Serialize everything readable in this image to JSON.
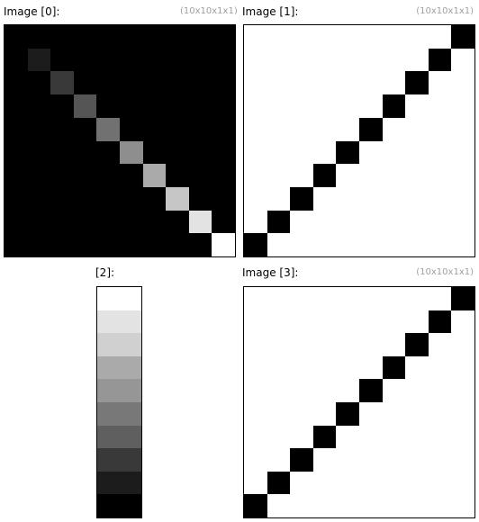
{
  "panels": [
    {
      "title": "Image [0]:",
      "dims": "(10x10x1x1)",
      "cells": [
        [
          0,
          0,
          0,
          0,
          0,
          0,
          0,
          0,
          0,
          0
        ],
        [
          0,
          28,
          0,
          0,
          0,
          0,
          0,
          0,
          0,
          0
        ],
        [
          0,
          0,
          57,
          0,
          0,
          0,
          0,
          0,
          0,
          0
        ],
        [
          0,
          0,
          0,
          85,
          0,
          0,
          0,
          0,
          0,
          0
        ],
        [
          0,
          0,
          0,
          0,
          113,
          0,
          0,
          0,
          0,
          0
        ],
        [
          0,
          0,
          0,
          0,
          0,
          142,
          0,
          0,
          0,
          0
        ],
        [
          0,
          0,
          0,
          0,
          0,
          0,
          170,
          0,
          0,
          0
        ],
        [
          0,
          0,
          0,
          0,
          0,
          0,
          0,
          198,
          0,
          0
        ],
        [
          0,
          0,
          0,
          0,
          0,
          0,
          0,
          0,
          227,
          0
        ],
        [
          0,
          0,
          0,
          0,
          0,
          0,
          0,
          0,
          0,
          255
        ]
      ]
    },
    {
      "title": "Image [1]:",
      "dims": "(10x10x1x1)",
      "cells": [
        [
          255,
          255,
          255,
          255,
          255,
          255,
          255,
          255,
          255,
          0
        ],
        [
          255,
          255,
          255,
          255,
          255,
          255,
          255,
          255,
          0,
          255
        ],
        [
          255,
          255,
          255,
          255,
          255,
          255,
          255,
          0,
          255,
          255
        ],
        [
          255,
          255,
          255,
          255,
          255,
          255,
          0,
          255,
          255,
          255
        ],
        [
          255,
          255,
          255,
          255,
          255,
          0,
          255,
          255,
          255,
          255
        ],
        [
          255,
          255,
          255,
          255,
          0,
          255,
          255,
          255,
          255,
          255
        ],
        [
          255,
          255,
          255,
          0,
          255,
          255,
          255,
          255,
          255,
          255
        ],
        [
          255,
          255,
          0,
          255,
          255,
          255,
          255,
          255,
          255,
          255
        ],
        [
          255,
          0,
          255,
          255,
          255,
          255,
          255,
          255,
          255,
          255
        ],
        [
          0,
          255,
          255,
          255,
          255,
          255,
          255,
          255,
          255,
          255
        ]
      ]
    },
    {
      "title": "[2]:",
      "dims": "",
      "cells": [
        [
          255
        ],
        [
          227
        ],
        [
          208
        ],
        [
          170
        ],
        [
          150
        ],
        [
          120
        ],
        [
          95
        ],
        [
          57
        ],
        [
          28
        ],
        [
          0
        ]
      ]
    },
    {
      "title": "Image [3]:",
      "dims": "(10x10x1x1)",
      "cells": [
        [
          255,
          255,
          255,
          255,
          255,
          255,
          255,
          255,
          255,
          0
        ],
        [
          255,
          255,
          255,
          255,
          255,
          255,
          255,
          255,
          0,
          255
        ],
        [
          255,
          255,
          255,
          255,
          255,
          255,
          255,
          0,
          255,
          255
        ],
        [
          255,
          255,
          255,
          255,
          255,
          255,
          0,
          255,
          255,
          255
        ],
        [
          255,
          255,
          255,
          255,
          255,
          0,
          255,
          255,
          255,
          255
        ],
        [
          255,
          255,
          255,
          255,
          0,
          255,
          255,
          255,
          255,
          255
        ],
        [
          255,
          255,
          255,
          0,
          255,
          255,
          255,
          255,
          255,
          255
        ],
        [
          255,
          255,
          0,
          255,
          255,
          255,
          255,
          255,
          255,
          255
        ],
        [
          255,
          0,
          255,
          255,
          255,
          255,
          255,
          255,
          255,
          255
        ],
        [
          0,
          255,
          255,
          255,
          255,
          255,
          255,
          255,
          255,
          255
        ]
      ]
    }
  ]
}
